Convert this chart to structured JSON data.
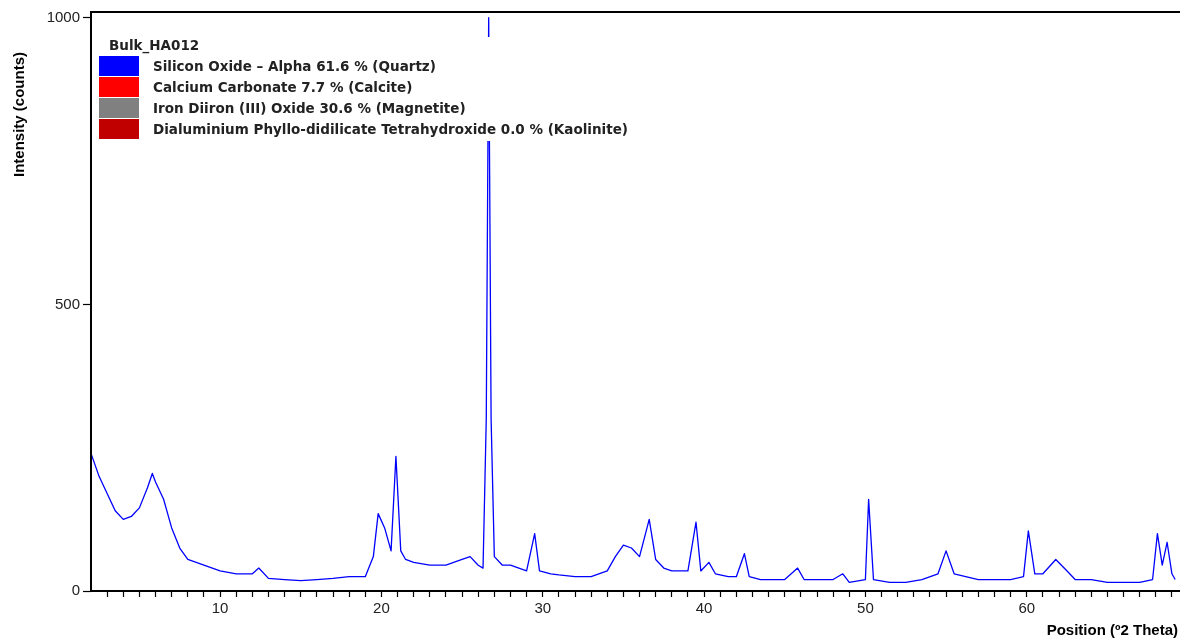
{
  "chart_data": {
    "type": "line",
    "xlabel": "Position (º2 Theta)",
    "ylabel": "Intensity (counts)",
    "legend_title": "Bulk_HA012",
    "legend": "top left",
    "marker": "none",
    "line_style": "solid",
    "grid": false,
    "xlim": [
      2,
      69.5
    ],
    "ylim": [
      0,
      1010
    ],
    "yticks": [
      0,
      500,
      1000
    ],
    "xticks": [
      {
        "value": 3,
        "label": null
      },
      {
        "value": 4,
        "label": null
      },
      {
        "value": 5,
        "label": null
      },
      {
        "value": 6,
        "label": null
      },
      {
        "value": 7,
        "label": null
      },
      {
        "value": 8,
        "label": null
      },
      {
        "value": 9,
        "label": null
      },
      10,
      {
        "value": 11,
        "label": null
      },
      {
        "value": 12,
        "label": null
      },
      {
        "value": 13,
        "label": null
      },
      {
        "value": 14,
        "label": null
      },
      {
        "value": 15,
        "label": null
      },
      {
        "value": 16,
        "label": null
      },
      {
        "value": 17,
        "label": null
      },
      {
        "value": 18,
        "label": null
      },
      {
        "value": 19,
        "label": null
      },
      20,
      {
        "value": 21,
        "label": null
      },
      {
        "value": 22,
        "label": null
      },
      {
        "value": 23,
        "label": null
      },
      {
        "value": 24,
        "label": null
      },
      {
        "value": 25,
        "label": null
      },
      {
        "value": 26,
        "label": null
      },
      {
        "value": 27,
        "label": null
      },
      {
        "value": 28,
        "label": null
      },
      {
        "value": 29,
        "label": null
      },
      30,
      {
        "value": 31,
        "label": null
      },
      {
        "value": 32,
        "label": null
      },
      {
        "value": 33,
        "label": null
      },
      {
        "value": 34,
        "label": null
      },
      {
        "value": 35,
        "label": null
      },
      {
        "value": 36,
        "label": null
      },
      {
        "value": 37,
        "label": null
      },
      {
        "value": 38,
        "label": null
      },
      {
        "value": 39,
        "label": null
      },
      40,
      {
        "value": 41,
        "label": null
      },
      {
        "value": 42,
        "label": null
      },
      {
        "value": 43,
        "label": null
      },
      {
        "value": 44,
        "label": null
      },
      {
        "value": 45,
        "label": null
      },
      {
        "value": 46,
        "label": null
      },
      {
        "value": 47,
        "label": null
      },
      {
        "value": 48,
        "label": null
      },
      {
        "value": 49,
        "label": null
      },
      50,
      {
        "value": 51,
        "label": null
      },
      {
        "value": 52,
        "label": null
      },
      {
        "value": 53,
        "label": null
      },
      {
        "value": 54,
        "label": null
      },
      {
        "value": 55,
        "label": null
      },
      {
        "value": 56,
        "label": null
      },
      {
        "value": 57,
        "label": null
      },
      {
        "value": 58,
        "label": null
      },
      {
        "value": 59,
        "label": null
      },
      60,
      {
        "value": 61,
        "label": null
      },
      {
        "value": 62,
        "label": null
      },
      {
        "value": 63,
        "label": null
      },
      {
        "value": 64,
        "label": null
      },
      {
        "value": 65,
        "label": null
      },
      {
        "value": 66,
        "label": null
      },
      {
        "value": 67,
        "label": null
      },
      {
        "value": 68,
        "label": null
      },
      {
        "value": 69,
        "label": null
      }
    ],
    "x": [
      2.0,
      2.5,
      3.0,
      3.5,
      4.0,
      4.5,
      5.0,
      5.5,
      5.8,
      6.0,
      6.5,
      7.0,
      7.5,
      8.0,
      9.0,
      10,
      11,
      12,
      12.4,
      13,
      14,
      15,
      16,
      17,
      18,
      19,
      19.5,
      19.8,
      20.2,
      20.6,
      20.9,
      21.2,
      21.5,
      22,
      23,
      24,
      25,
      25.5,
      26.0,
      26.3,
      26.5,
      26.65,
      26.8,
      27.0,
      27.5,
      28,
      29,
      29.5,
      29.8,
      30.5,
      31,
      32,
      33,
      34,
      34.5,
      35.0,
      35.5,
      36.0,
      36.6,
      37.0,
      37.5,
      38,
      39,
      39.5,
      39.8,
      40.3,
      40.7,
      41.5,
      42.0,
      42.5,
      42.8,
      43.5,
      45,
      45.8,
      46.2,
      47,
      48,
      48.6,
      49,
      50.0,
      50.2,
      50.5,
      51.5,
      52.5,
      53.5,
      54.5,
      55.0,
      55.5,
      57,
      58,
      59,
      59.8,
      60.1,
      60.5,
      61.0,
      61.8,
      62.5,
      63,
      64,
      65,
      66,
      67,
      67.8,
      68.1,
      68.4,
      68.7,
      69.0,
      69.2
    ],
    "series": [
      {
        "name": "Silicon Oxide – Alpha 61.6 % (Quartz)",
        "color": "#0000ff",
        "values": [
          240,
          200,
          170,
          140,
          125,
          130,
          145,
          180,
          205,
          190,
          160,
          110,
          75,
          55,
          45,
          35,
          30,
          30,
          40,
          22,
          20,
          18,
          20,
          22,
          25,
          25,
          60,
          135,
          110,
          70,
          235,
          70,
          55,
          50,
          45,
          45,
          55,
          60,
          45,
          40,
          300,
          1000,
          300,
          60,
          45,
          45,
          35,
          100,
          35,
          30,
          28,
          25,
          25,
          35,
          60,
          80,
          75,
          60,
          125,
          55,
          40,
          35,
          35,
          120,
          35,
          50,
          30,
          25,
          25,
          65,
          25,
          20,
          20,
          40,
          20,
          20,
          20,
          30,
          15,
          20,
          160,
          20,
          15,
          15,
          20,
          30,
          70,
          30,
          20,
          20,
          20,
          25,
          105,
          30,
          30,
          55,
          35,
          20,
          20,
          15,
          15,
          15,
          20,
          100,
          45,
          85,
          30,
          20
        ]
      },
      {
        "name": "Calcium Carbonate 7.7 % (Calcite)",
        "color": "#ff0000",
        "values": [
          null,
          null,
          null,
          null,
          null,
          null,
          null,
          null,
          null,
          null,
          null,
          null,
          null,
          null,
          null,
          null,
          null,
          null,
          null,
          null,
          null,
          null,
          null,
          null,
          null,
          null,
          null,
          null,
          null,
          null,
          null,
          null,
          null,
          null,
          null,
          null,
          null,
          null,
          null,
          null,
          null,
          null,
          null,
          null,
          null,
          null,
          null,
          null,
          null,
          null,
          null,
          null,
          null,
          null,
          null,
          null,
          null,
          null,
          null,
          null,
          null,
          null,
          null,
          null,
          null,
          null,
          null,
          null,
          null,
          null,
          null,
          null,
          null,
          null,
          null,
          null,
          null,
          null,
          null,
          null,
          null,
          null,
          null,
          null,
          null,
          null,
          null,
          null,
          null,
          null,
          null,
          null,
          null,
          null,
          null,
          null,
          null,
          null,
          null,
          null,
          null,
          null,
          null,
          null,
          null,
          null,
          null,
          null
        ]
      },
      {
        "name": "Iron Diiron (III) Oxide 30.6 % (Magnetite)",
        "color": "#808080",
        "values": [
          null,
          null,
          null,
          null,
          null,
          null,
          null,
          null,
          null,
          null,
          null,
          null,
          null,
          null,
          null,
          null,
          null,
          null,
          null,
          null,
          null,
          null,
          null,
          null,
          null,
          null,
          null,
          null,
          null,
          null,
          null,
          null,
          null,
          null,
          null,
          null,
          null,
          null,
          null,
          null,
          null,
          null,
          null,
          null,
          null,
          null,
          null,
          null,
          null,
          null,
          null,
          null,
          null,
          null,
          null,
          null,
          null,
          null,
          null,
          null,
          null,
          null,
          null,
          null,
          null,
          null,
          null,
          null,
          null,
          null,
          null,
          null,
          null,
          null,
          null,
          null,
          null,
          null,
          null,
          null,
          null,
          null,
          null,
          null,
          null,
          null,
          null,
          null,
          null,
          null,
          null,
          null,
          null,
          null,
          null,
          null,
          null,
          null,
          null,
          null,
          null,
          null,
          null,
          null,
          null,
          null,
          null,
          null
        ]
      },
      {
        "name": "Dialuminium Phyllo-didilicate Tetrahydroxide 0.0 % (Kaolinite)",
        "color": "#c00000",
        "values": [
          null,
          null,
          null,
          null,
          null,
          null,
          null,
          null,
          null,
          null,
          null,
          null,
          null,
          null,
          null,
          null,
          null,
          null,
          null,
          null,
          null,
          null,
          null,
          null,
          null,
          null,
          null,
          null,
          null,
          null,
          null,
          null,
          null,
          null,
          null,
          null,
          null,
          null,
          null,
          null,
          null,
          null,
          null,
          null,
          null,
          null,
          null,
          null,
          null,
          null,
          null,
          null,
          null,
          null,
          null,
          null,
          null,
          null,
          null,
          null,
          null,
          null,
          null,
          null,
          null,
          null,
          null,
          null,
          null,
          null,
          null,
          null,
          null,
          null,
          null,
          null,
          null,
          null,
          null,
          null,
          null,
          null,
          null,
          null,
          null,
          null,
          null,
          null,
          null,
          null,
          null,
          null,
          null,
          null,
          null,
          null,
          null,
          null,
          null,
          null,
          null,
          null,
          null,
          null,
          null,
          null,
          null,
          null
        ]
      }
    ]
  }
}
